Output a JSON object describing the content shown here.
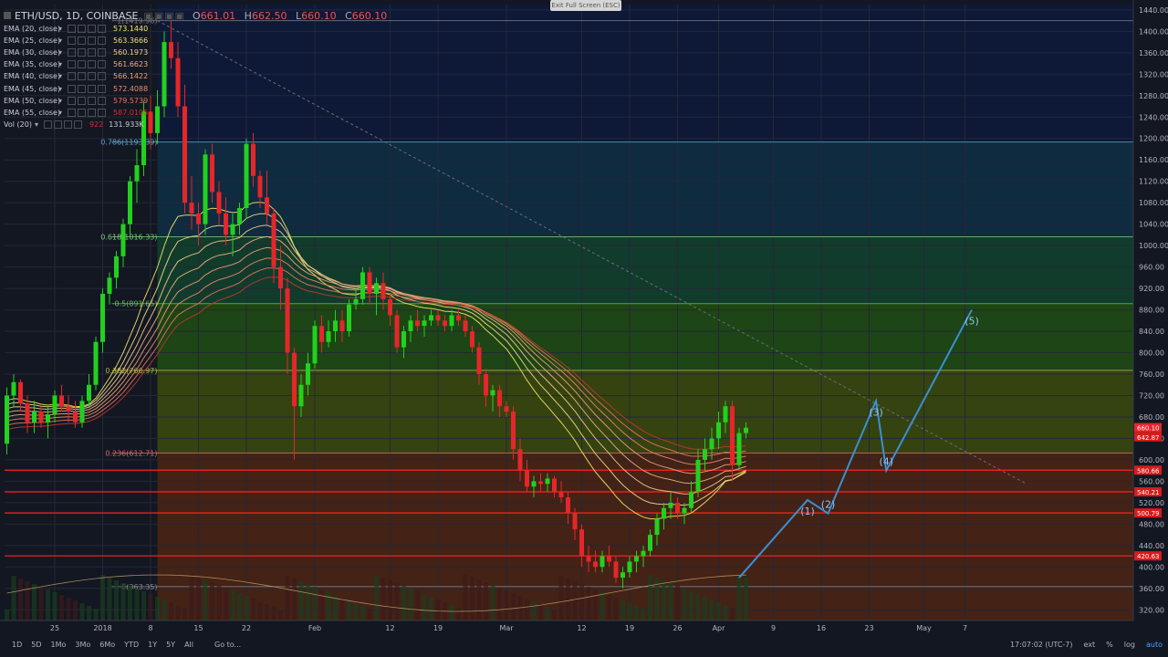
{
  "header": {
    "symbol": "ETH/USD, 1D, COINBASE",
    "open_label": "O",
    "open": "661.01",
    "high_label": "H",
    "high": "662.50",
    "low_label": "L",
    "low": "660.10",
    "close_label": "C",
    "close": "660.10"
  },
  "indicators": [
    {
      "name": "EMA (20, close)",
      "value": "573.1440",
      "color": "#f5e663"
    },
    {
      "name": "EMA (25, close)",
      "value": "563.3666",
      "color": "#f2dc86"
    },
    {
      "name": "EMA (30, close)",
      "value": "560.1973",
      "color": "#f3c98a"
    },
    {
      "name": "EMA (35, close)",
      "value": "561.6623",
      "color": "#f0b07c"
    },
    {
      "name": "EMA (40, close)",
      "value": "566.1422",
      "color": "#ee9e74"
    },
    {
      "name": "EMA (45, close)",
      "value": "572.4088",
      "color": "#ea8a64"
    },
    {
      "name": "EMA (50, close)",
      "value": "579.5739",
      "color": "#e07657"
    },
    {
      "name": "EMA (55, close)",
      "value": "587.0105",
      "color": "#c0392b"
    }
  ],
  "volume": {
    "name": "Vol (20)",
    "value1": "922",
    "value2": "131.933K"
  },
  "exit_fullscreen": "Exit Full Screen (ESC)",
  "bottom": {
    "timeframes": [
      "1D",
      "5D",
      "1Mo",
      "3Mo",
      "6Mo",
      "YTD",
      "1Y",
      "5Y",
      "All"
    ],
    "goto": "Go to...",
    "time": "17:07:02 (UTC-7)",
    "ext": "ext",
    "pct": "%",
    "log": "log",
    "auto": "auto"
  },
  "colors": {
    "up": "#22d11e",
    "down": "#e5262a",
    "background": "#131722",
    "wave": "#3d8fd1",
    "level_line": "#ff2222"
  },
  "chart_data": {
    "type": "candlestick",
    "y_ticks": [
      320,
      360,
      400,
      440,
      480,
      520,
      560,
      600,
      640,
      680,
      720,
      760,
      800,
      840,
      880,
      920,
      960,
      1000,
      1040,
      1080,
      1120,
      1160,
      1200,
      1240,
      1280,
      1320,
      1360,
      1400,
      1440
    ],
    "ylim": [
      300,
      1450
    ],
    "x_ticks": [
      {
        "label": "25",
        "day": 0
      },
      {
        "label": "2018",
        "day": 7
      },
      {
        "label": "8",
        "day": 14
      },
      {
        "label": "15",
        "day": 21
      },
      {
        "label": "22",
        "day": 28
      },
      {
        "label": "Feb",
        "day": 38
      },
      {
        "label": "12",
        "day": 49
      },
      {
        "label": "19",
        "day": 56
      },
      {
        "label": "Mar",
        "day": 66
      },
      {
        "label": "12",
        "day": 77
      },
      {
        "label": "19",
        "day": 84
      },
      {
        "label": "26",
        "day": 91
      },
      {
        "label": "Apr",
        "day": 97
      },
      {
        "label": "9",
        "day": 105
      },
      {
        "label": "16",
        "day": 112
      },
      {
        "label": "23",
        "day": 119
      },
      {
        "label": "May",
        "day": 127
      },
      {
        "label": "7",
        "day": 133
      }
    ],
    "fib_levels": [
      {
        "label": "1(1419.96)",
        "price": 1419.96,
        "color": "#787b86"
      },
      {
        "label": "0.786(1193.39)",
        "price": 1193.39,
        "color": "#5fa3c8"
      },
      {
        "label": "0.618(1016.33)",
        "price": 1016.33,
        "color": "#7fc97f"
      },
      {
        "label": "0.5(891.65)",
        "price": 891.65,
        "color": "#66bb66"
      },
      {
        "label": "0.382(766.97)",
        "price": 766.97,
        "color": "#b4b44a"
      },
      {
        "label": "0.236(612.71)",
        "price": 612.71,
        "color": "#d86b6b"
      },
      {
        "label": "0(363.35)",
        "price": 363.35,
        "color": "#888888"
      }
    ],
    "price_labels": [
      {
        "text": "660.10",
        "price": 660.1
      },
      {
        "text": "642.87",
        "price": 642.87
      },
      {
        "text": "580.66",
        "price": 580.66
      },
      {
        "text": "540.21",
        "price": 540.21
      },
      {
        "text": "500.79",
        "price": 500.79
      },
      {
        "text": "420.63",
        "price": 420.63
      }
    ],
    "horizontal_levels": [
      580.66,
      540.21,
      500.79,
      420.63
    ],
    "wave_points": [
      {
        "label": "",
        "day": 100,
        "price": 380
      },
      {
        "label": "(1)",
        "day": 110,
        "price": 525
      },
      {
        "label": "(2)",
        "day": 113,
        "price": 500
      },
      {
        "label": "(3)",
        "day": 120,
        "price": 710
      },
      {
        "label": "(4)",
        "day": 121.5,
        "price": 580
      },
      {
        "label": "(5)",
        "day": 134,
        "price": 880
      }
    ],
    "trendline": [
      {
        "day": 15,
        "price": 1419.96
      },
      {
        "day": 142,
        "price": 555
      }
    ],
    "candles": [
      [
        630,
        735,
        610,
        720
      ],
      [
        720,
        760,
        700,
        745
      ],
      [
        745,
        750,
        690,
        705
      ],
      [
        705,
        720,
        650,
        670
      ],
      [
        670,
        710,
        650,
        690
      ],
      [
        690,
        700,
        660,
        670
      ],
      [
        670,
        700,
        640,
        685
      ],
      [
        685,
        730,
        670,
        720
      ],
      [
        720,
        740,
        690,
        700
      ],
      [
        700,
        720,
        670,
        690
      ],
      [
        690,
        710,
        660,
        670
      ],
      [
        670,
        720,
        660,
        710
      ],
      [
        710,
        760,
        700,
        740
      ],
      [
        740,
        830,
        730,
        820
      ],
      [
        820,
        920,
        800,
        910
      ],
      [
        910,
        950,
        890,
        940
      ],
      [
        940,
        990,
        920,
        980
      ],
      [
        980,
        1050,
        960,
        1040
      ],
      [
        1040,
        1130,
        1020,
        1120
      ],
      [
        1120,
        1180,
        1080,
        1150
      ],
      [
        1150,
        1270,
        1130,
        1250
      ],
      [
        1250,
        1280,
        1180,
        1210
      ],
      [
        1210,
        1290,
        1190,
        1260
      ],
      [
        1260,
        1400,
        1240,
        1380
      ],
      [
        1380,
        1420,
        1330,
        1350
      ],
      [
        1350,
        1380,
        1240,
        1260
      ],
      [
        1260,
        1300,
        1060,
        1080
      ],
      [
        1080,
        1130,
        1030,
        1060
      ],
      [
        1060,
        1080,
        1000,
        1040
      ],
      [
        1040,
        1180,
        1020,
        1170
      ],
      [
        1170,
        1190,
        1080,
        1100
      ],
      [
        1100,
        1120,
        1040,
        1060
      ],
      [
        1060,
        1090,
        1000,
        1020
      ],
      [
        1020,
        1060,
        980,
        1040
      ],
      [
        1040,
        1080,
        1020,
        1070
      ],
      [
        1070,
        1200,
        1050,
        1190
      ],
      [
        1190,
        1210,
        1110,
        1130
      ],
      [
        1130,
        1140,
        1070,
        1090
      ],
      [
        1090,
        1140,
        1040,
        1060
      ],
      [
        1060,
        1070,
        930,
        960
      ],
      [
        960,
        1000,
        880,
        920
      ],
      [
        920,
        940,
        760,
        800
      ],
      [
        800,
        810,
        600,
        700
      ],
      [
        700,
        760,
        680,
        740
      ],
      [
        740,
        800,
        720,
        780
      ],
      [
        780,
        860,
        770,
        850
      ],
      [
        850,
        870,
        800,
        820
      ],
      [
        820,
        860,
        810,
        840
      ],
      [
        840,
        880,
        820,
        860
      ],
      [
        860,
        880,
        820,
        840
      ],
      [
        840,
        900,
        830,
        890
      ],
      [
        890,
        920,
        880,
        900
      ],
      [
        900,
        960,
        890,
        950
      ],
      [
        950,
        960,
        890,
        910
      ],
      [
        910,
        940,
        870,
        930
      ],
      [
        930,
        950,
        880,
        900
      ],
      [
        900,
        910,
        850,
        870
      ],
      [
        870,
        880,
        800,
        810
      ],
      [
        810,
        850,
        790,
        840
      ],
      [
        840,
        870,
        820,
        860
      ],
      [
        860,
        880,
        840,
        850
      ],
      [
        850,
        870,
        830,
        860
      ],
      [
        860,
        880,
        850,
        870
      ],
      [
        870,
        880,
        850,
        860
      ],
      [
        860,
        870,
        840,
        850
      ],
      [
        850,
        880,
        840,
        870
      ],
      [
        870,
        880,
        850,
        860
      ],
      [
        860,
        870,
        830,
        840
      ],
      [
        840,
        850,
        800,
        810
      ],
      [
        810,
        820,
        740,
        760
      ],
      [
        760,
        770,
        700,
        720
      ],
      [
        720,
        740,
        690,
        730
      ],
      [
        730,
        740,
        680,
        700
      ],
      [
        700,
        710,
        680,
        690
      ],
      [
        690,
        700,
        600,
        620
      ],
      [
        620,
        640,
        560,
        580
      ],
      [
        580,
        600,
        540,
        550
      ],
      [
        550,
        570,
        530,
        560
      ],
      [
        560,
        575,
        540,
        555
      ],
      [
        555,
        575,
        540,
        565
      ],
      [
        565,
        570,
        530,
        540
      ],
      [
        540,
        560,
        520,
        530
      ],
      [
        530,
        540,
        480,
        500
      ],
      [
        500,
        510,
        450,
        470
      ],
      [
        470,
        480,
        400,
        420
      ],
      [
        420,
        440,
        390,
        410
      ],
      [
        410,
        430,
        390,
        400
      ],
      [
        400,
        430,
        390,
        420
      ],
      [
        420,
        440,
        400,
        410
      ],
      [
        410,
        420,
        370,
        380
      ],
      [
        380,
        400,
        360,
        390
      ],
      [
        390,
        420,
        380,
        410
      ],
      [
        410,
        430,
        390,
        420
      ],
      [
        420,
        440,
        400,
        430
      ],
      [
        430,
        470,
        420,
        460
      ],
      [
        460,
        500,
        440,
        490
      ],
      [
        490,
        520,
        470,
        510
      ],
      [
        510,
        540,
        490,
        520
      ],
      [
        520,
        530,
        490,
        500
      ],
      [
        500,
        520,
        480,
        510
      ],
      [
        510,
        560,
        500,
        540
      ],
      [
        540,
        620,
        530,
        600
      ],
      [
        600,
        640,
        580,
        620
      ],
      [
        620,
        660,
        600,
        640
      ],
      [
        640,
        690,
        620,
        670
      ],
      [
        670,
        710,
        650,
        700
      ],
      [
        700,
        710,
        560,
        590
      ],
      [
        590,
        660,
        580,
        650
      ],
      [
        650,
        670,
        640,
        660
      ]
    ]
  }
}
